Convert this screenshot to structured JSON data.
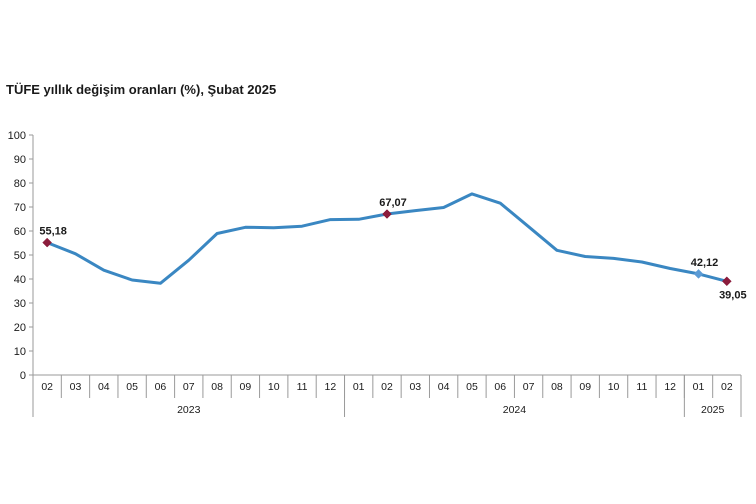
{
  "chart_data": {
    "type": "line",
    "title": "TÜFE yıllık değişim oranları (%), Şubat 2025",
    "xlabel": "",
    "ylabel": "",
    "ylim": [
      0,
      100
    ],
    "yticks": [
      "0",
      "10",
      "20",
      "30",
      "40",
      "50",
      "60",
      "70",
      "80",
      "90",
      "100"
    ],
    "categories": [
      "02",
      "03",
      "04",
      "05",
      "06",
      "07",
      "08",
      "09",
      "10",
      "11",
      "12",
      "01",
      "02",
      "03",
      "04",
      "05",
      "06",
      "07",
      "08",
      "09",
      "10",
      "11",
      "12",
      "01",
      "02"
    ],
    "years": [
      {
        "label": "2023",
        "start": 0,
        "end": 10
      },
      {
        "label": "2024",
        "start": 11,
        "end": 22
      },
      {
        "label": "2025",
        "start": 23,
        "end": 24
      }
    ],
    "series": [
      {
        "values": [
          55.18,
          50.51,
          43.68,
          39.59,
          38.21,
          47.83,
          58.94,
          61.53,
          61.36,
          61.98,
          64.77,
          64.86,
          67.07,
          68.5,
          69.8,
          75.45,
          71.6,
          61.78,
          51.97,
          49.38,
          48.58,
          47.09,
          44.38,
          42.12,
          39.05
        ],
        "color": "#3a87c2"
      }
    ],
    "annotations": [
      {
        "index": 0,
        "label": "55,18",
        "marker_color": "#8b1c3c",
        "position": "above"
      },
      {
        "index": 12,
        "label": "67,07",
        "marker_color": "#8b1c3c",
        "position": "above"
      },
      {
        "index": 23,
        "label": "42,12",
        "marker_color": "#5b9bd5",
        "position": "above"
      },
      {
        "index": 24,
        "label": "39,05",
        "marker_color": "#8b1c3c",
        "position": "below"
      }
    ],
    "grid": false,
    "legend": "none"
  }
}
